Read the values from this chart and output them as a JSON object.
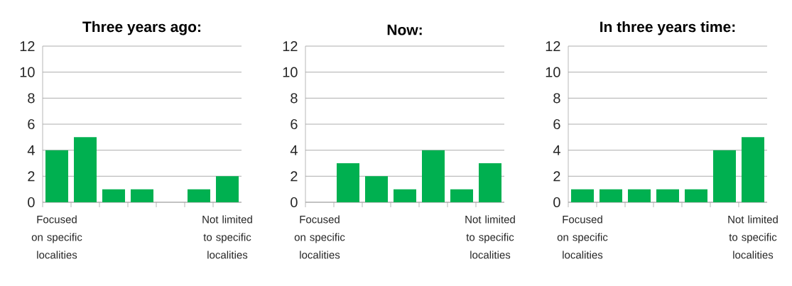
{
  "chart_data": [
    {
      "type": "bar",
      "title": "Three years ago:",
      "categories": [
        "Focused on specific localities",
        null,
        null,
        null,
        null,
        null,
        "Not limited to specific localities"
      ],
      "values": [
        4,
        5,
        1,
        1,
        0,
        1,
        2
      ],
      "color": "#00b050",
      "ylim": [
        0,
        12
      ],
      "yticks": [
        0,
        2,
        4,
        6,
        8,
        10,
        12
      ],
      "grid": "y"
    },
    {
      "type": "bar",
      "title": "Now:",
      "categories": [
        "Focused on specific localities",
        null,
        null,
        null,
        null,
        null,
        "Not limited to specific localities"
      ],
      "values": [
        0,
        3,
        2,
        1,
        4,
        1,
        3
      ],
      "color": "#00b050",
      "ylim": [
        0,
        12
      ],
      "yticks": [
        0,
        2,
        4,
        6,
        8,
        10,
        12
      ],
      "grid": "y"
    },
    {
      "type": "bar",
      "title": "In three years time:",
      "categories": [
        "Focused on specific localities",
        null,
        null,
        null,
        null,
        null,
        "Not limited to specific localities"
      ],
      "values": [
        1,
        1,
        1,
        1,
        1,
        4,
        5
      ],
      "color": "#00b050",
      "ylim": [
        0,
        12
      ],
      "yticks": [
        0,
        2,
        4,
        6,
        8,
        10,
        12
      ],
      "grid": "y"
    }
  ]
}
